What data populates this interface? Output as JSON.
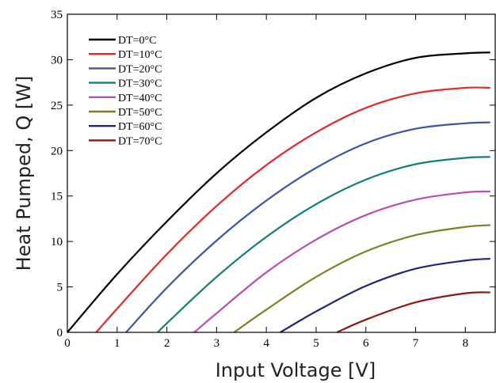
{
  "chart_data": {
    "type": "line",
    "xlabel": "Input Voltage [V]",
    "ylabel": "Heat Pumped, Q [W]",
    "xlim": [
      0,
      8.6
    ],
    "ylim": [
      0,
      35
    ],
    "xticks": [
      0,
      1,
      2,
      3,
      4,
      5,
      6,
      7,
      8
    ],
    "yticks": [
      0,
      5,
      10,
      15,
      20,
      25,
      30,
      35
    ],
    "grid": false,
    "legend_position": "top-left",
    "series": [
      {
        "name": "DT=0°C",
        "color": "#000000",
        "x": [
          0,
          1,
          2,
          3,
          4,
          5,
          6,
          7,
          8,
          8.5
        ],
        "y": [
          0,
          6.4,
          12.2,
          17.5,
          22.0,
          25.8,
          28.5,
          30.2,
          30.7,
          30.8
        ]
      },
      {
        "name": "DT=10°C",
        "color": "#e8262b",
        "x": [
          0.58,
          1,
          2,
          3,
          4,
          5,
          6,
          7,
          8,
          8.5
        ],
        "y": [
          0,
          2.6,
          8.6,
          13.9,
          18.4,
          22.0,
          24.7,
          26.3,
          26.9,
          26.9
        ]
      },
      {
        "name": "DT=20°C",
        "color": "#3a55a4",
        "x": [
          1.18,
          2,
          3,
          4,
          5,
          6,
          7,
          8,
          8.5
        ],
        "y": [
          0,
          4.9,
          10.1,
          14.5,
          18.1,
          20.8,
          22.4,
          23.0,
          23.1
        ]
      },
      {
        "name": "DT=30°C",
        "color": "#0d7f7c",
        "x": [
          1.82,
          2,
          3,
          4,
          5,
          6,
          7,
          8,
          8.5
        ],
        "y": [
          0,
          1.0,
          6.1,
          10.5,
          14.1,
          16.8,
          18.5,
          19.2,
          19.3
        ]
      },
      {
        "name": "DT=40°C",
        "color": "#b64fb0",
        "x": [
          2.55,
          3,
          4,
          5,
          6,
          7,
          8,
          8.5
        ],
        "y": [
          0,
          2.1,
          6.6,
          10.2,
          12.9,
          14.6,
          15.4,
          15.5
        ]
      },
      {
        "name": "DT=50°C",
        "color": "#7f7f24",
        "x": [
          3.35,
          4,
          5,
          6,
          7,
          8,
          8.5
        ],
        "y": [
          0,
          2.5,
          6.1,
          8.9,
          10.7,
          11.6,
          11.8
        ]
      },
      {
        "name": "DT=60°C",
        "color": "#222577",
        "x": [
          4.28,
          5,
          6,
          7,
          8,
          8.5
        ],
        "y": [
          0,
          2.3,
          5.1,
          7.0,
          7.9,
          8.1
        ]
      },
      {
        "name": "DT=70°C",
        "color": "#8b1717",
        "x": [
          5.42,
          6,
          7,
          8,
          8.5
        ],
        "y": [
          0,
          1.4,
          3.3,
          4.3,
          4.4
        ]
      }
    ]
  }
}
